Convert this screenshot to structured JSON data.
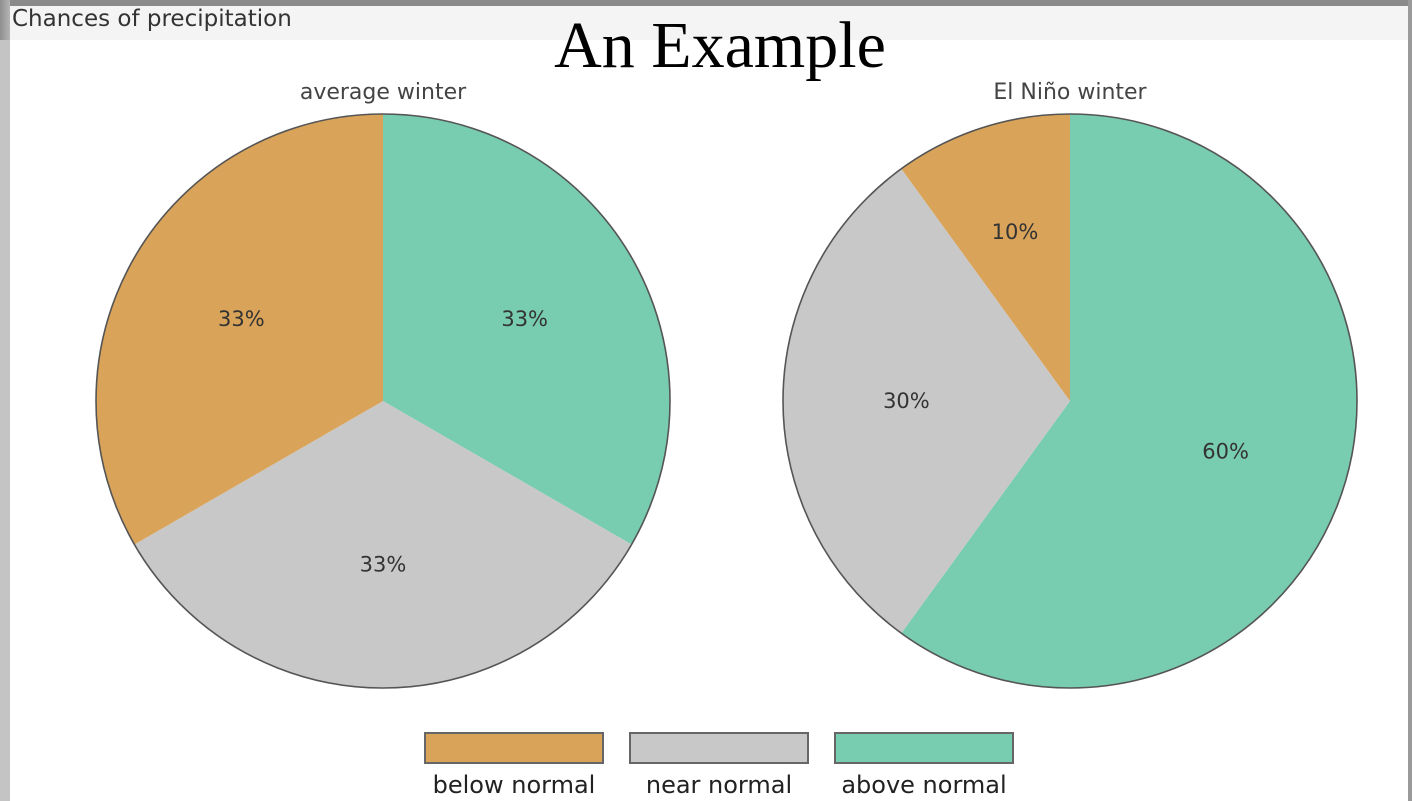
{
  "heading": {
    "caption": "Chances of precipitation",
    "title": "An Example"
  },
  "chart_data": {
    "type": "pie",
    "categories": [
      "below normal",
      "near normal",
      "above normal"
    ],
    "colors": {
      "below normal": "#D9A45A",
      "near normal": "#C8C8C8",
      "above normal": "#78CCB0"
    },
    "pies": [
      {
        "title": "average winter",
        "slices": [
          {
            "category": "above normal",
            "value": 33,
            "label": "33%"
          },
          {
            "category": "near normal",
            "value": 33,
            "label": "33%"
          },
          {
            "category": "below normal",
            "value": 33,
            "label": "33%"
          }
        ]
      },
      {
        "title": "El Niño winter",
        "slices": [
          {
            "category": "above normal",
            "value": 60,
            "label": "60%"
          },
          {
            "category": "near normal",
            "value": 30,
            "label": "30%"
          },
          {
            "category": "below normal",
            "value": 10,
            "label": "10%"
          }
        ]
      }
    ],
    "start_angle": "12 o'clock",
    "direction": "clockwise",
    "legend_position": "bottom-center"
  },
  "legend": {
    "items": [
      {
        "label": "below normal",
        "color": "#D9A45A"
      },
      {
        "label": "near normal",
        "color": "#C8C8C8"
      },
      {
        "label": "above normal",
        "color": "#78CCB0"
      }
    ]
  }
}
